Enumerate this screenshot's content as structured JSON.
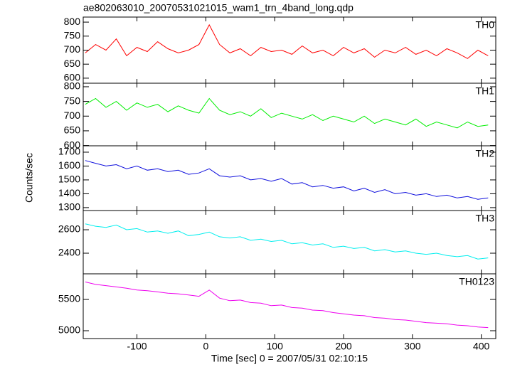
{
  "figure": {
    "title": "ae802063010_20070531021015_wam1_trn_4band_long.qdp",
    "y_label": "Counts/sec",
    "x_label": "Time [sec] 0 = 2007/05/31 02:10:15"
  },
  "chart_data": [
    {
      "type": "line",
      "xlim": [
        -178,
        421
      ],
      "xticks": [
        -100,
        0,
        100,
        200,
        300,
        400
      ],
      "ylim": [
        582,
        818
      ],
      "yticks": [
        600,
        650,
        700,
        750,
        800
      ],
      "x": [
        -175,
        -160,
        -145,
        -130,
        -115,
        -100,
        -85,
        -70,
        -55,
        -40,
        -25,
        -10,
        5,
        20,
        35,
        50,
        65,
        80,
        95,
        110,
        125,
        140,
        155,
        170,
        185,
        200,
        215,
        230,
        245,
        260,
        275,
        290,
        305,
        320,
        335,
        350,
        365,
        380,
        395,
        410
      ],
      "series": [
        {
          "name": "TH0",
          "color": "#ff0000",
          "values": [
            690,
            720,
            700,
            740,
            680,
            710,
            695,
            730,
            705,
            690,
            700,
            720,
            790,
            720,
            690,
            705,
            680,
            710,
            695,
            700,
            685,
            715,
            690,
            700,
            680,
            710,
            690,
            705,
            675,
            700,
            690,
            710,
            685,
            700,
            680,
            705,
            690,
            670,
            700,
            680
          ]
        }
      ]
    },
    {
      "type": "line",
      "xlim": [
        -178,
        421
      ],
      "xticks": [
        -100,
        0,
        100,
        200,
        300,
        400
      ],
      "ylim": [
        599,
        812
      ],
      "yticks": [
        600,
        650,
        700,
        750,
        800
      ],
      "x": [
        -175,
        -160,
        -145,
        -130,
        -115,
        -100,
        -85,
        -70,
        -55,
        -40,
        -25,
        -10,
        5,
        20,
        35,
        50,
        65,
        80,
        95,
        110,
        125,
        140,
        155,
        170,
        185,
        200,
        215,
        230,
        245,
        260,
        275,
        290,
        305,
        320,
        335,
        350,
        365,
        380,
        395,
        410
      ],
      "series": [
        {
          "name": "TH1",
          "color": "#00ee00",
          "values": [
            740,
            760,
            730,
            750,
            720,
            745,
            730,
            740,
            715,
            735,
            720,
            710,
            760,
            720,
            705,
            715,
            700,
            725,
            695,
            710,
            700,
            690,
            705,
            685,
            700,
            690,
            680,
            700,
            675,
            690,
            680,
            670,
            690,
            665,
            680,
            670,
            660,
            680,
            665,
            670
          ]
        }
      ]
    },
    {
      "type": "line",
      "xlim": [
        -178,
        421
      ],
      "xticks": [
        -100,
        0,
        100,
        200,
        300,
        400
      ],
      "ylim": [
        1279,
        1746
      ],
      "yticks": [
        1300,
        1400,
        1500,
        1600,
        1700
      ],
      "x": [
        -175,
        -160,
        -145,
        -130,
        -115,
        -100,
        -85,
        -70,
        -55,
        -40,
        -25,
        -10,
        5,
        20,
        35,
        50,
        65,
        80,
        95,
        110,
        125,
        140,
        155,
        170,
        185,
        200,
        215,
        230,
        245,
        260,
        275,
        290,
        305,
        320,
        335,
        350,
        365,
        380,
        395,
        410
      ],
      "series": [
        {
          "name": "TH2",
          "color": "#1010dd",
          "values": [
            1640,
            1620,
            1600,
            1610,
            1580,
            1600,
            1570,
            1580,
            1560,
            1570,
            1540,
            1550,
            1580,
            1530,
            1520,
            1530,
            1500,
            1510,
            1490,
            1510,
            1470,
            1480,
            1450,
            1460,
            1440,
            1450,
            1420,
            1440,
            1410,
            1430,
            1400,
            1410,
            1390,
            1400,
            1380,
            1390,
            1370,
            1380,
            1360,
            1370
          ]
        }
      ]
    },
    {
      "type": "line",
      "xlim": [
        -178,
        421
      ],
      "xticks": [
        -100,
        0,
        100,
        200,
        300,
        400
      ],
      "ylim": [
        2224,
        2764
      ],
      "yticks": [
        2400,
        2600
      ],
      "x": [
        -175,
        -160,
        -145,
        -130,
        -115,
        -100,
        -85,
        -70,
        -55,
        -40,
        -25,
        -10,
        5,
        20,
        35,
        50,
        65,
        80,
        95,
        110,
        125,
        140,
        155,
        170,
        185,
        200,
        215,
        230,
        245,
        260,
        275,
        290,
        305,
        320,
        335,
        350,
        365,
        380,
        395,
        410
      ],
      "series": [
        {
          "name": "TH3",
          "color": "#00eeee",
          "values": [
            2650,
            2630,
            2620,
            2640,
            2600,
            2610,
            2580,
            2590,
            2570,
            2590,
            2550,
            2560,
            2580,
            2540,
            2530,
            2540,
            2510,
            2520,
            2500,
            2510,
            2480,
            2490,
            2470,
            2480,
            2450,
            2460,
            2440,
            2450,
            2420,
            2430,
            2410,
            2420,
            2400,
            2390,
            2400,
            2380,
            2370,
            2380,
            2350,
            2360
          ]
        }
      ]
    },
    {
      "type": "line",
      "xlim": [
        -178,
        421
      ],
      "xticks": [
        -100,
        0,
        100,
        200,
        300,
        400
      ],
      "ylim": [
        4875,
        5909
      ],
      "yticks": [
        5000,
        5500
      ],
      "x": [
        -175,
        -160,
        -145,
        -130,
        -115,
        -100,
        -85,
        -70,
        -55,
        -40,
        -25,
        -10,
        5,
        20,
        35,
        50,
        65,
        80,
        95,
        110,
        125,
        140,
        155,
        170,
        185,
        200,
        215,
        230,
        245,
        260,
        275,
        290,
        305,
        320,
        335,
        350,
        365,
        380,
        395,
        410
      ],
      "series": [
        {
          "name": "TH0123",
          "color": "#ee00ee",
          "values": [
            5780,
            5740,
            5720,
            5700,
            5680,
            5650,
            5640,
            5620,
            5600,
            5590,
            5570,
            5550,
            5650,
            5520,
            5480,
            5490,
            5450,
            5440,
            5400,
            5410,
            5370,
            5360,
            5330,
            5320,
            5290,
            5270,
            5250,
            5240,
            5210,
            5200,
            5180,
            5170,
            5150,
            5130,
            5120,
            5110,
            5090,
            5080,
            5060,
            5050
          ]
        }
      ]
    }
  ]
}
